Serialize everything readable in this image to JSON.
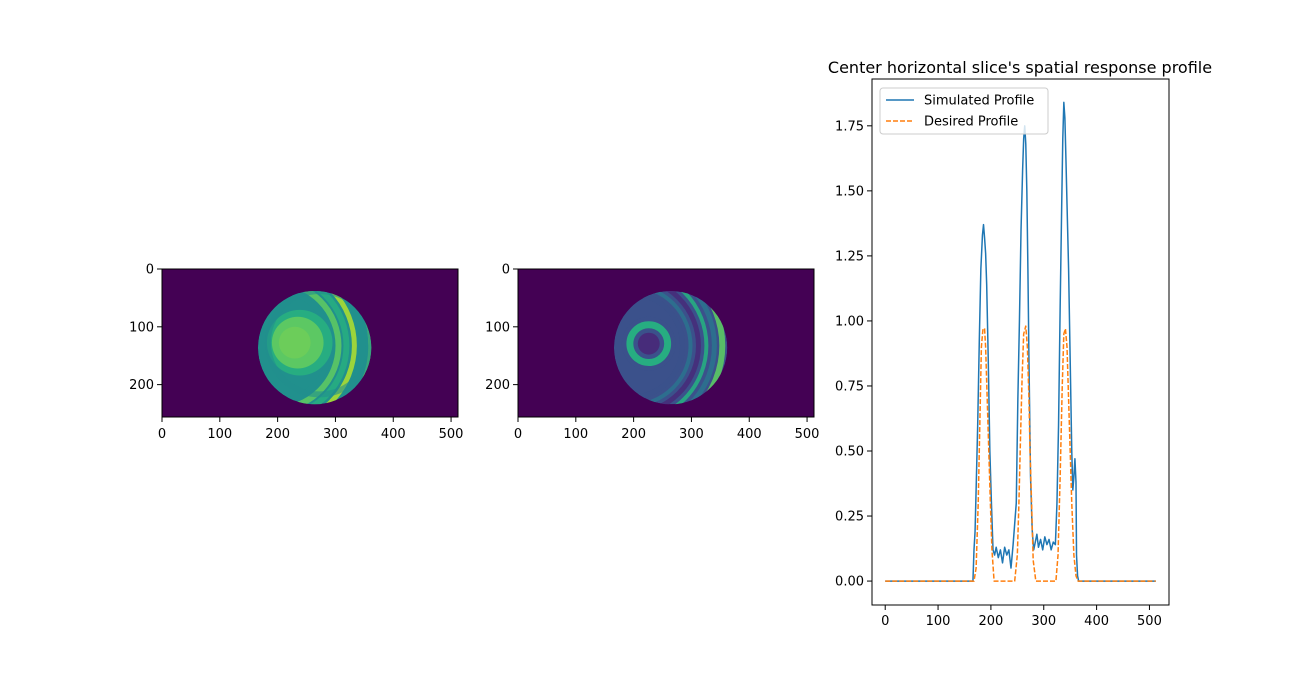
{
  "chart_data": [
    {
      "type": "heatmap",
      "title": "",
      "colormap": "viridis",
      "xlim": [
        0,
        512
      ],
      "ylim": [
        256,
        0
      ],
      "x_ticks": [
        0,
        100,
        200,
        300,
        400,
        500
      ],
      "y_ticks": [
        0,
        100,
        200
      ],
      "disk": {
        "center_x": 264,
        "center_y": 136,
        "radius": 98
      },
      "background_color": "#440154",
      "pattern": "amplitude"
    },
    {
      "type": "heatmap",
      "title": "",
      "colormap": "viridis",
      "xlim": [
        0,
        512
      ],
      "ylim": [
        256,
        0
      ],
      "x_ticks": [
        0,
        100,
        200,
        300,
        400,
        500
      ],
      "y_ticks": [
        0,
        100,
        200
      ],
      "disk": {
        "center_x": 264,
        "center_y": 136,
        "radius": 98
      },
      "background_color": "#440154",
      "pattern": "phase"
    },
    {
      "type": "line",
      "title": "Center horizontal slice's spatial response profile",
      "xlabel": "",
      "ylabel": "",
      "xlim": [
        -25,
        537
      ],
      "ylim": [
        -0.092,
        1.93
      ],
      "x_ticks": [
        0,
        100,
        200,
        300,
        400,
        500
      ],
      "y_ticks": [
        0.0,
        0.25,
        0.5,
        0.75,
        1.0,
        1.25,
        1.5,
        1.75
      ],
      "grid": false,
      "legend_position": "upper-left",
      "series": [
        {
          "name": "Simulated Profile",
          "color": "#1f77b4",
          "style": "solid",
          "x": [
            0,
            166,
            168,
            170,
            172,
            175,
            178,
            181,
            184,
            186,
            188,
            190,
            192,
            195,
            198,
            201,
            204,
            207,
            210,
            214,
            218,
            222,
            226,
            230,
            234,
            238,
            242,
            245,
            248,
            251,
            254,
            257,
            260,
            262,
            264,
            266,
            268,
            270,
            272,
            275,
            278,
            281,
            284,
            287,
            290,
            294,
            298,
            302,
            306,
            310,
            314,
            318,
            322,
            325,
            328,
            331,
            334,
            336,
            338,
            340,
            342,
            344,
            347,
            350,
            353,
            355,
            357,
            359,
            361,
            362,
            364,
            366,
            370,
            380,
            512
          ],
          "y": [
            0,
            0,
            0.12,
            0.19,
            0.35,
            0.6,
            0.92,
            1.2,
            1.33,
            1.37,
            1.32,
            1.26,
            1.14,
            0.85,
            0.5,
            0.3,
            0.12,
            0.1,
            0.13,
            0.09,
            0.12,
            0.07,
            0.13,
            0.1,
            0.12,
            0.05,
            0.14,
            0.22,
            0.3,
            0.7,
            1.0,
            1.35,
            1.58,
            1.7,
            1.75,
            1.68,
            1.5,
            1.2,
            0.85,
            0.4,
            0.2,
            0.12,
            0.15,
            0.18,
            0.13,
            0.16,
            0.12,
            0.17,
            0.14,
            0.16,
            0.12,
            0.15,
            0.14,
            0.3,
            0.6,
            1.05,
            1.45,
            1.7,
            1.84,
            1.78,
            1.62,
            1.45,
            1.2,
            0.85,
            0.5,
            0.35,
            0.4,
            0.47,
            0.38,
            0.1,
            0.02,
            0,
            0,
            0,
            0
          ]
        },
        {
          "name": "Desired Profile",
          "color": "#ff7f0e",
          "style": "dashed",
          "x": [
            0,
            168,
            172,
            176,
            179,
            182,
            185,
            188,
            190,
            193,
            196,
            199,
            202,
            206,
            210,
            245,
            250,
            253,
            256,
            259,
            262,
            266,
            269,
            272,
            274,
            277,
            280,
            285,
            323,
            327,
            331,
            335,
            338,
            341,
            344,
            347,
            350,
            353,
            357,
            361,
            365,
            512
          ],
          "y": [
            0,
            0,
            0.05,
            0.3,
            0.6,
            0.9,
            0.97,
            0.97,
            0.9,
            0.7,
            0.5,
            0.3,
            0.12,
            0,
            0,
            0,
            0.1,
            0.3,
            0.55,
            0.78,
            0.95,
            0.98,
            0.9,
            0.7,
            0.5,
            0.3,
            0.08,
            0,
            0,
            0.1,
            0.4,
            0.75,
            0.95,
            0.97,
            0.9,
            0.7,
            0.5,
            0.3,
            0.1,
            0.02,
            0,
            0
          ]
        }
      ]
    }
  ]
}
